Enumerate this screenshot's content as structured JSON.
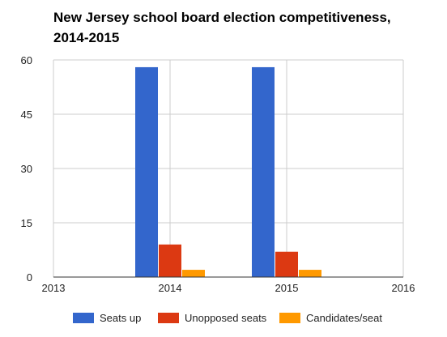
{
  "chart_data": {
    "type": "bar",
    "title": "New Jersey school board election competitiveness, 2014-2015",
    "xlabel": "",
    "ylabel": "",
    "x_axis_ticks": [
      "2013",
      "2014",
      "2015",
      "2016"
    ],
    "xlim": [
      2013,
      2016
    ],
    "y_axis_ticks": [
      "0",
      "15",
      "30",
      "45",
      "60"
    ],
    "ylim": [
      0,
      60
    ],
    "grid": true,
    "legend_position": "bottom",
    "categories": [
      2014,
      2015
    ],
    "series": [
      {
        "name": "Seats up",
        "color": "#3366cc",
        "values": [
          58,
          58
        ]
      },
      {
        "name": "Unopposed seats",
        "color": "#dc3912",
        "values": [
          9,
          7
        ]
      },
      {
        "name": "Candidates/seat",
        "color": "#ff9900",
        "values": [
          2,
          2
        ]
      }
    ]
  }
}
